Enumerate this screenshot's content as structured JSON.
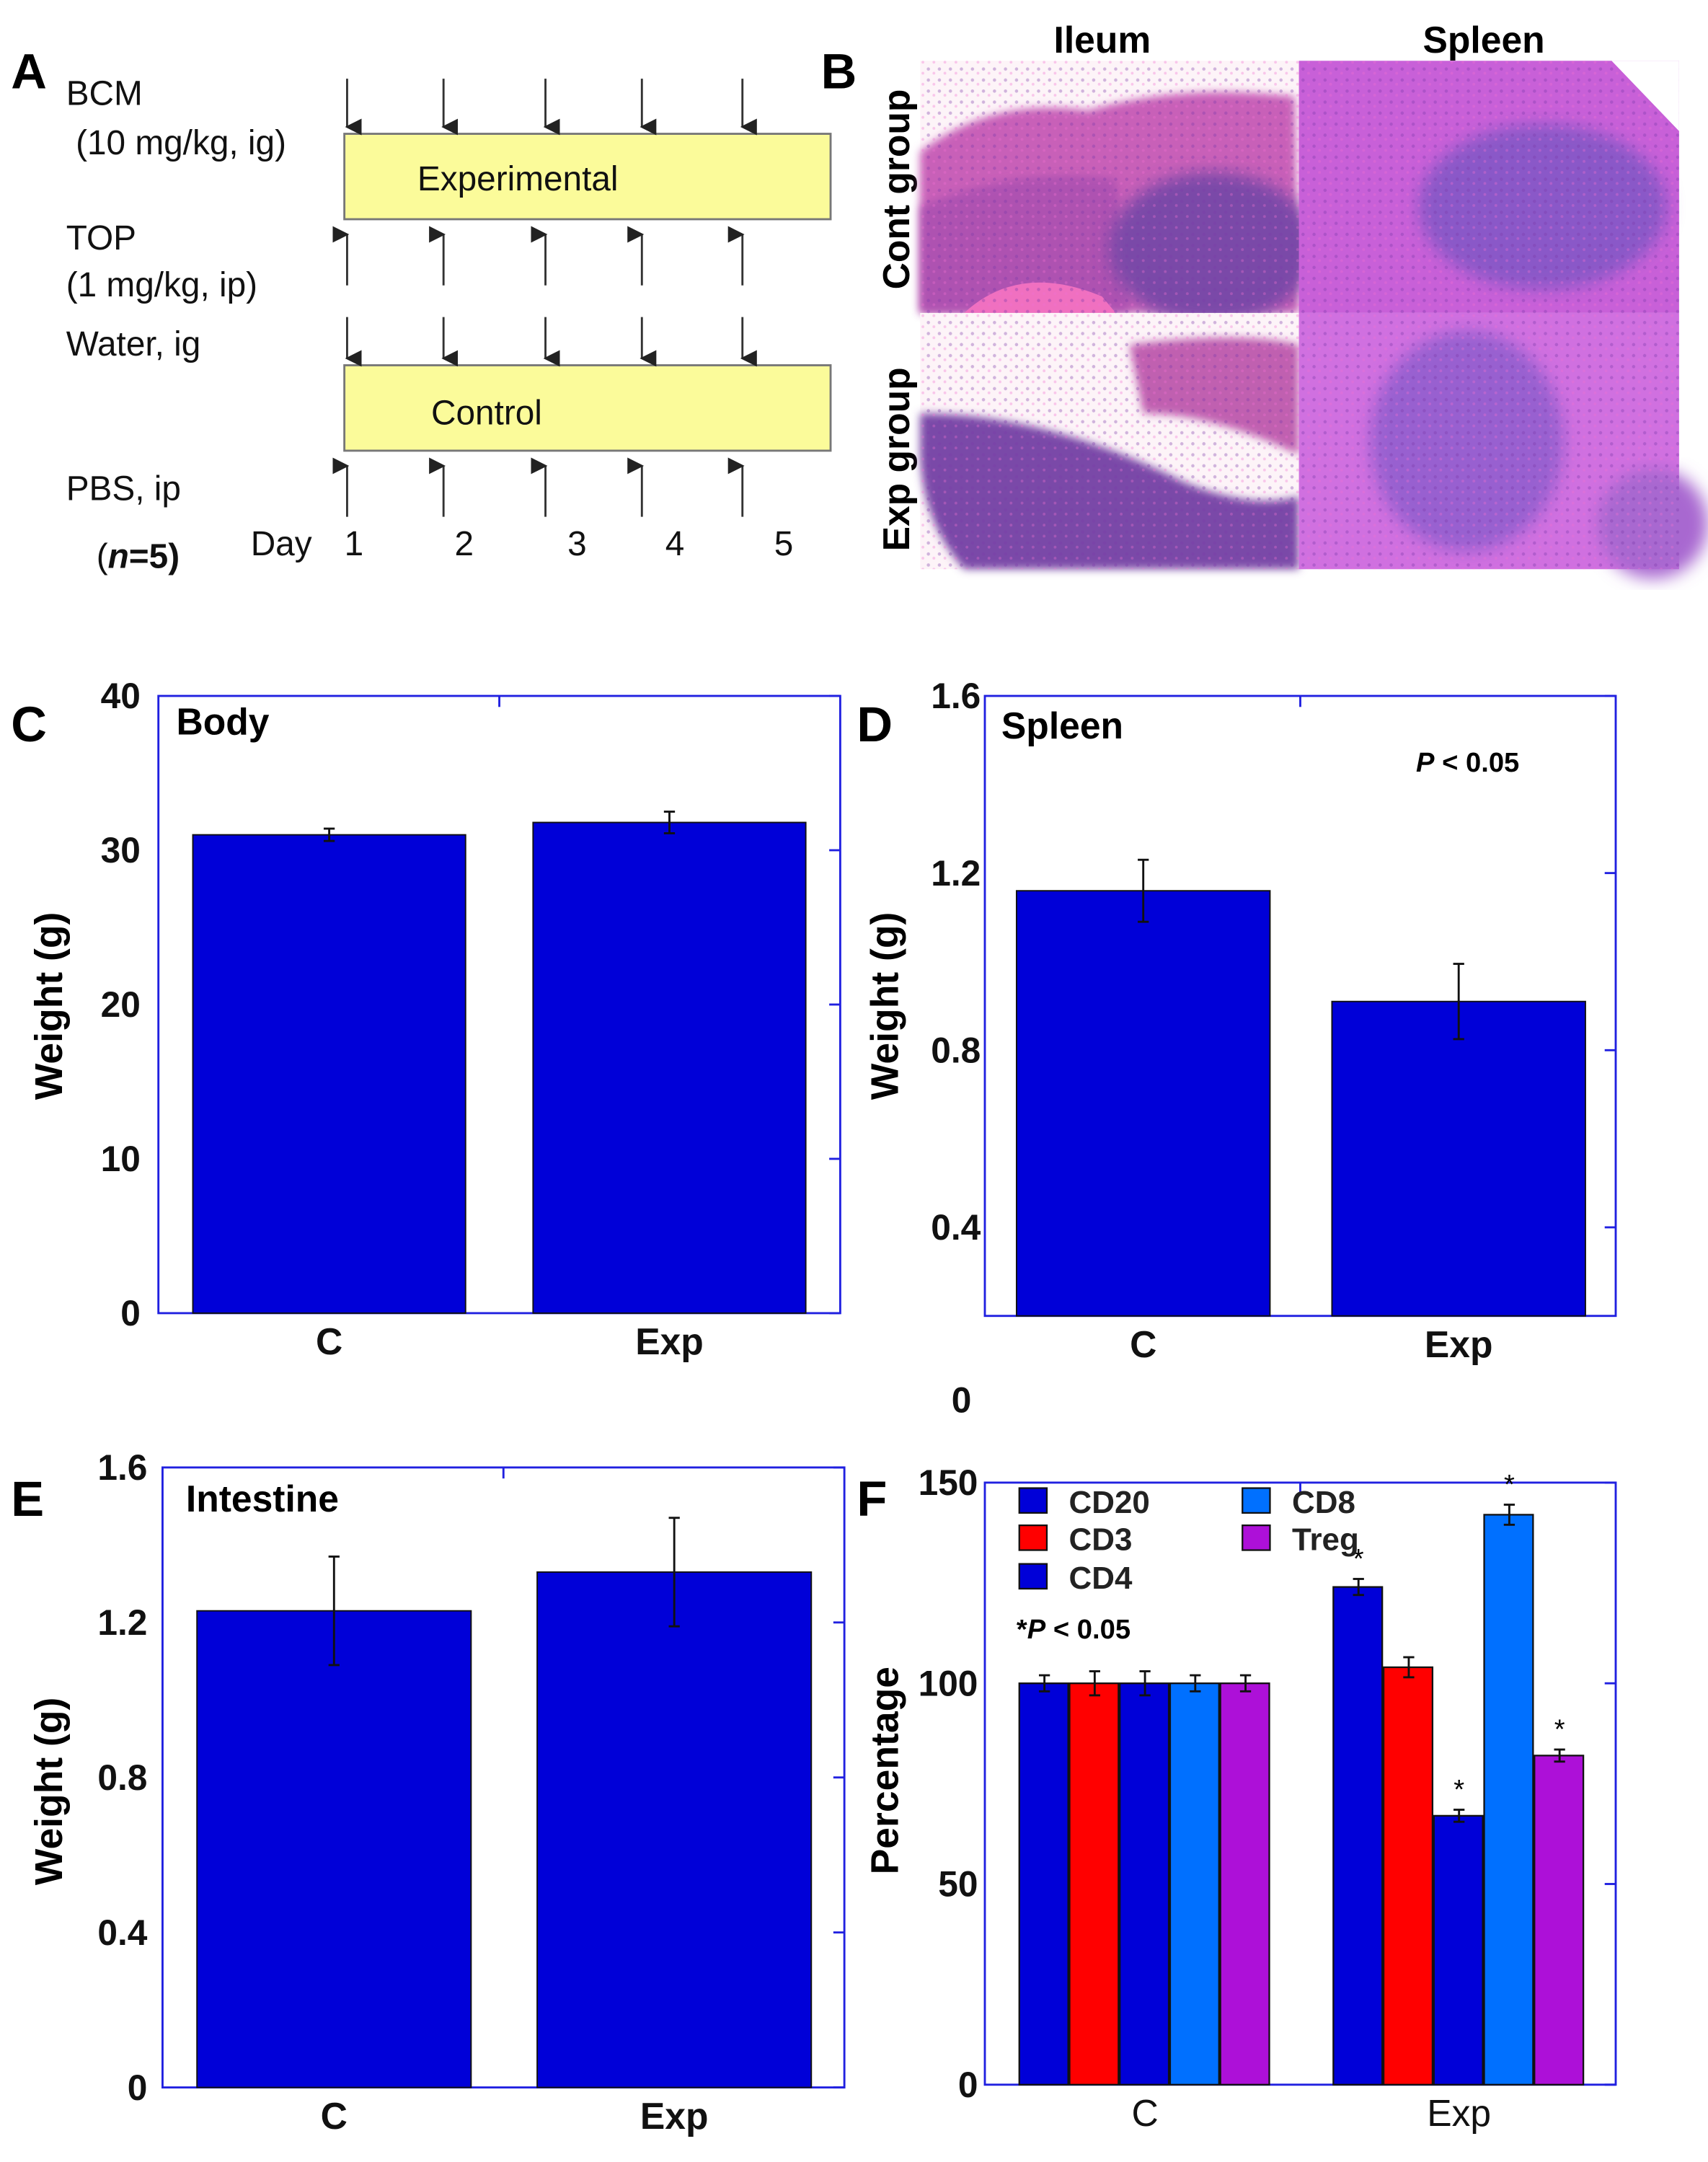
{
  "panel_labels": [
    "A",
    "B",
    "C",
    "D",
    "E",
    "F"
  ],
  "panel_a": {
    "bcm": "BCM",
    "bcm_dose": "(10 mg/kg,  ig)",
    "top": "TOP",
    "top_dose": "(1 mg/kg,  ip)",
    "water": "Water, ig",
    "pbs": "PBS, ip",
    "n_prefix": "(",
    "n_italic": "n",
    "n_suffix": "=5)",
    "experimental_box": "Experimental",
    "control_box": "Control",
    "day_label": "Day",
    "days": [
      "1",
      "2",
      "3",
      "4",
      "5"
    ],
    "box_color": "#fbfb9a"
  },
  "panel_b": {
    "columns": [
      "Ileum",
      "Spleen"
    ],
    "rows": [
      "Cont group",
      "Exp group"
    ]
  },
  "chart_data": [
    {
      "id": "C",
      "type": "bar",
      "title": "Body",
      "ylabel": "Weight (g)",
      "xlabel": "",
      "categories": [
        "C",
        "Exp"
      ],
      "values": [
        31.0,
        31.8
      ],
      "errors": [
        0.4,
        0.7
      ],
      "ylim": [
        0,
        40
      ],
      "yticks": [
        "0",
        "10",
        "20",
        "30",
        "40"
      ],
      "ytick_values": [
        0,
        10,
        20,
        30,
        40
      ],
      "color": "#0000d8"
    },
    {
      "id": "D",
      "type": "bar",
      "title": "Spleen",
      "ylabel": "Weight (g)",
      "xlabel": "",
      "annotation": {
        "italic": "P",
        "rest": " < 0.05"
      },
      "categories": [
        "C",
        "Exp"
      ],
      "values": [
        1.16,
        0.91
      ],
      "errors": [
        0.07,
        0.085
      ],
      "ylim": [
        0.2,
        1.6
      ],
      "yticks": [
        "0.4",
        "0.8",
        "1.2",
        "1.6"
      ],
      "ytick_values": [
        0.4,
        0.8,
        1.2,
        1.6
      ],
      "stray_tick": "0",
      "color": "#0000d8"
    },
    {
      "id": "E",
      "type": "bar",
      "title": "Intestine",
      "ylabel": "Weight (g)",
      "xlabel": "",
      "categories": [
        "C",
        "Exp"
      ],
      "values": [
        1.23,
        1.33
      ],
      "errors": [
        0.14,
        0.14
      ],
      "ylim": [
        0,
        1.6
      ],
      "yticks": [
        "0",
        "0.4",
        "0.8",
        "1.2",
        "1.6"
      ],
      "ytick_values": [
        0,
        0.4,
        0.8,
        1.2,
        1.6
      ],
      "color": "#0000d8"
    },
    {
      "id": "F",
      "type": "bar",
      "title": "",
      "ylabel": "Percentage",
      "xlabel": "",
      "annotation": {
        "star": "*",
        "italic": "P",
        "rest": " < 0.05"
      },
      "categories": [
        "C",
        "Exp"
      ],
      "ylim": [
        0,
        150
      ],
      "yticks": [
        "0",
        "50",
        "100",
        "150"
      ],
      "ytick_values": [
        0,
        50,
        100,
        150
      ],
      "series": [
        {
          "name": "CD20",
          "color": "#0000d8",
          "values": [
            100,
            124
          ],
          "errors": [
            2,
            2
          ],
          "significant": [
            false,
            true
          ]
        },
        {
          "name": "CD3",
          "color": "#ff0000",
          "values": [
            100,
            104
          ],
          "errors": [
            3,
            2.5
          ],
          "significant": [
            false,
            false
          ]
        },
        {
          "name": "CD4",
          "color": "#0000d8",
          "values": [
            100,
            67
          ],
          "errors": [
            3,
            1.5
          ],
          "significant": [
            false,
            true
          ]
        },
        {
          "name": "CD8",
          "color": "#0070ff",
          "values": [
            100,
            142
          ],
          "errors": [
            2,
            2.5
          ],
          "significant": [
            false,
            true
          ]
        },
        {
          "name": "Treg",
          "color": "#ad10d8",
          "values": [
            100,
            82
          ],
          "errors": [
            2,
            1.5
          ],
          "significant": [
            false,
            true
          ]
        }
      ],
      "significance_mark": "*"
    }
  ]
}
